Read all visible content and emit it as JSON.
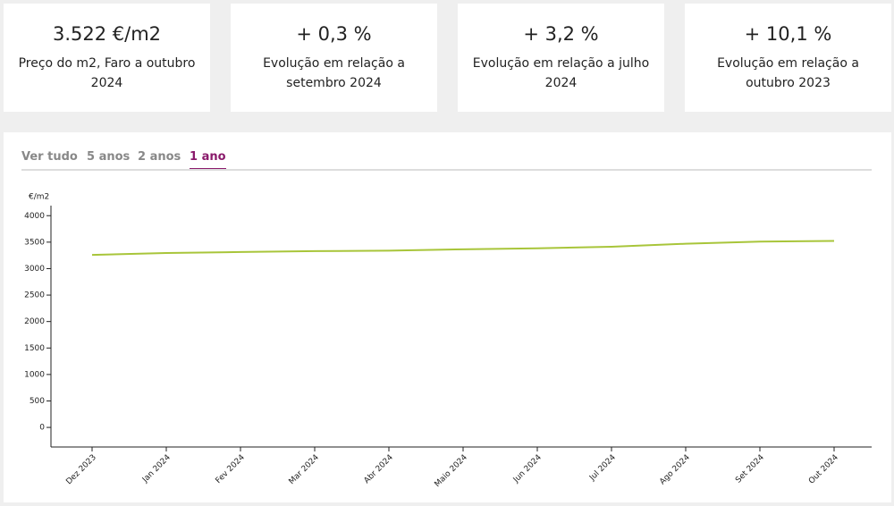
{
  "cards": [
    {
      "value": "3.522 €/m2",
      "label": "Preço do m2, Faro a outubro 2024"
    },
    {
      "value": "+ 0,3 %",
      "label": "Evolução em relação a setembro 2024"
    },
    {
      "value": "+ 3,2 %",
      "label": "Evolução em relação a julho 2024"
    },
    {
      "value": "+ 10,1 %",
      "label": "Evolução em relação a outubro 2023"
    }
  ],
  "tabs": [
    "Ver tudo",
    "5 anos",
    "2 anos",
    "1 ano"
  ],
  "active_tab": 3,
  "chart_data": {
    "type": "line",
    "y_label": "€/m2",
    "categories": [
      "Dez 2023",
      "Jan 2024",
      "Fev 2024",
      "Mar 2024",
      "Abr 2024",
      "Maio 2024",
      "Jun 2024",
      "Jul 2024",
      "Ago 2024",
      "Set 2024",
      "Out 2024"
    ],
    "values": [
      3260,
      3295,
      3313,
      3330,
      3340,
      3365,
      3383,
      3413,
      3470,
      3511,
      3522
    ],
    "color": "#a8c53a",
    "ylim": [
      -370,
      4190
    ],
    "yticks": [
      0,
      500,
      1000,
      1500,
      2000,
      2500,
      3000,
      3500,
      4000
    ]
  }
}
